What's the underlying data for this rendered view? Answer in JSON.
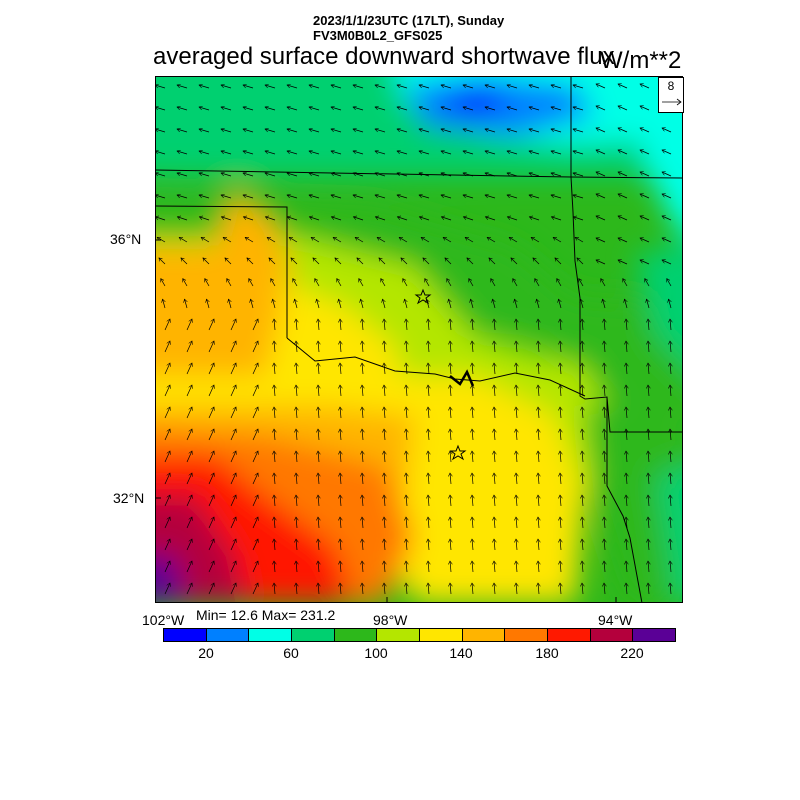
{
  "header": {
    "line1": "2023/1/1/23UTC (17LT), Sunday",
    "line2": "FV3M0B0L2_GFS025",
    "title": "averaged surface downward shortwave flux",
    "units": "W/m**2"
  },
  "map": {
    "lat_labels": [
      "36°N",
      "32°N"
    ],
    "lon_labels": [
      "102°W",
      "98°W",
      "94°W"
    ],
    "reference_vector": "8",
    "markers": [
      "star-marker",
      "star-marker"
    ]
  },
  "stats": "Min= 12.6 Max= 231.2",
  "colorbar": {
    "colors": [
      "#0000ff",
      "#0080ff",
      "#00ffe6",
      "#00d070",
      "#2db81b",
      "#b4e600",
      "#ffe600",
      "#ffb400",
      "#ff7800",
      "#ff1900",
      "#b4003c",
      "#5a0096"
    ],
    "labels": [
      "20",
      "60",
      "100",
      "140",
      "180",
      "220"
    ]
  }
}
